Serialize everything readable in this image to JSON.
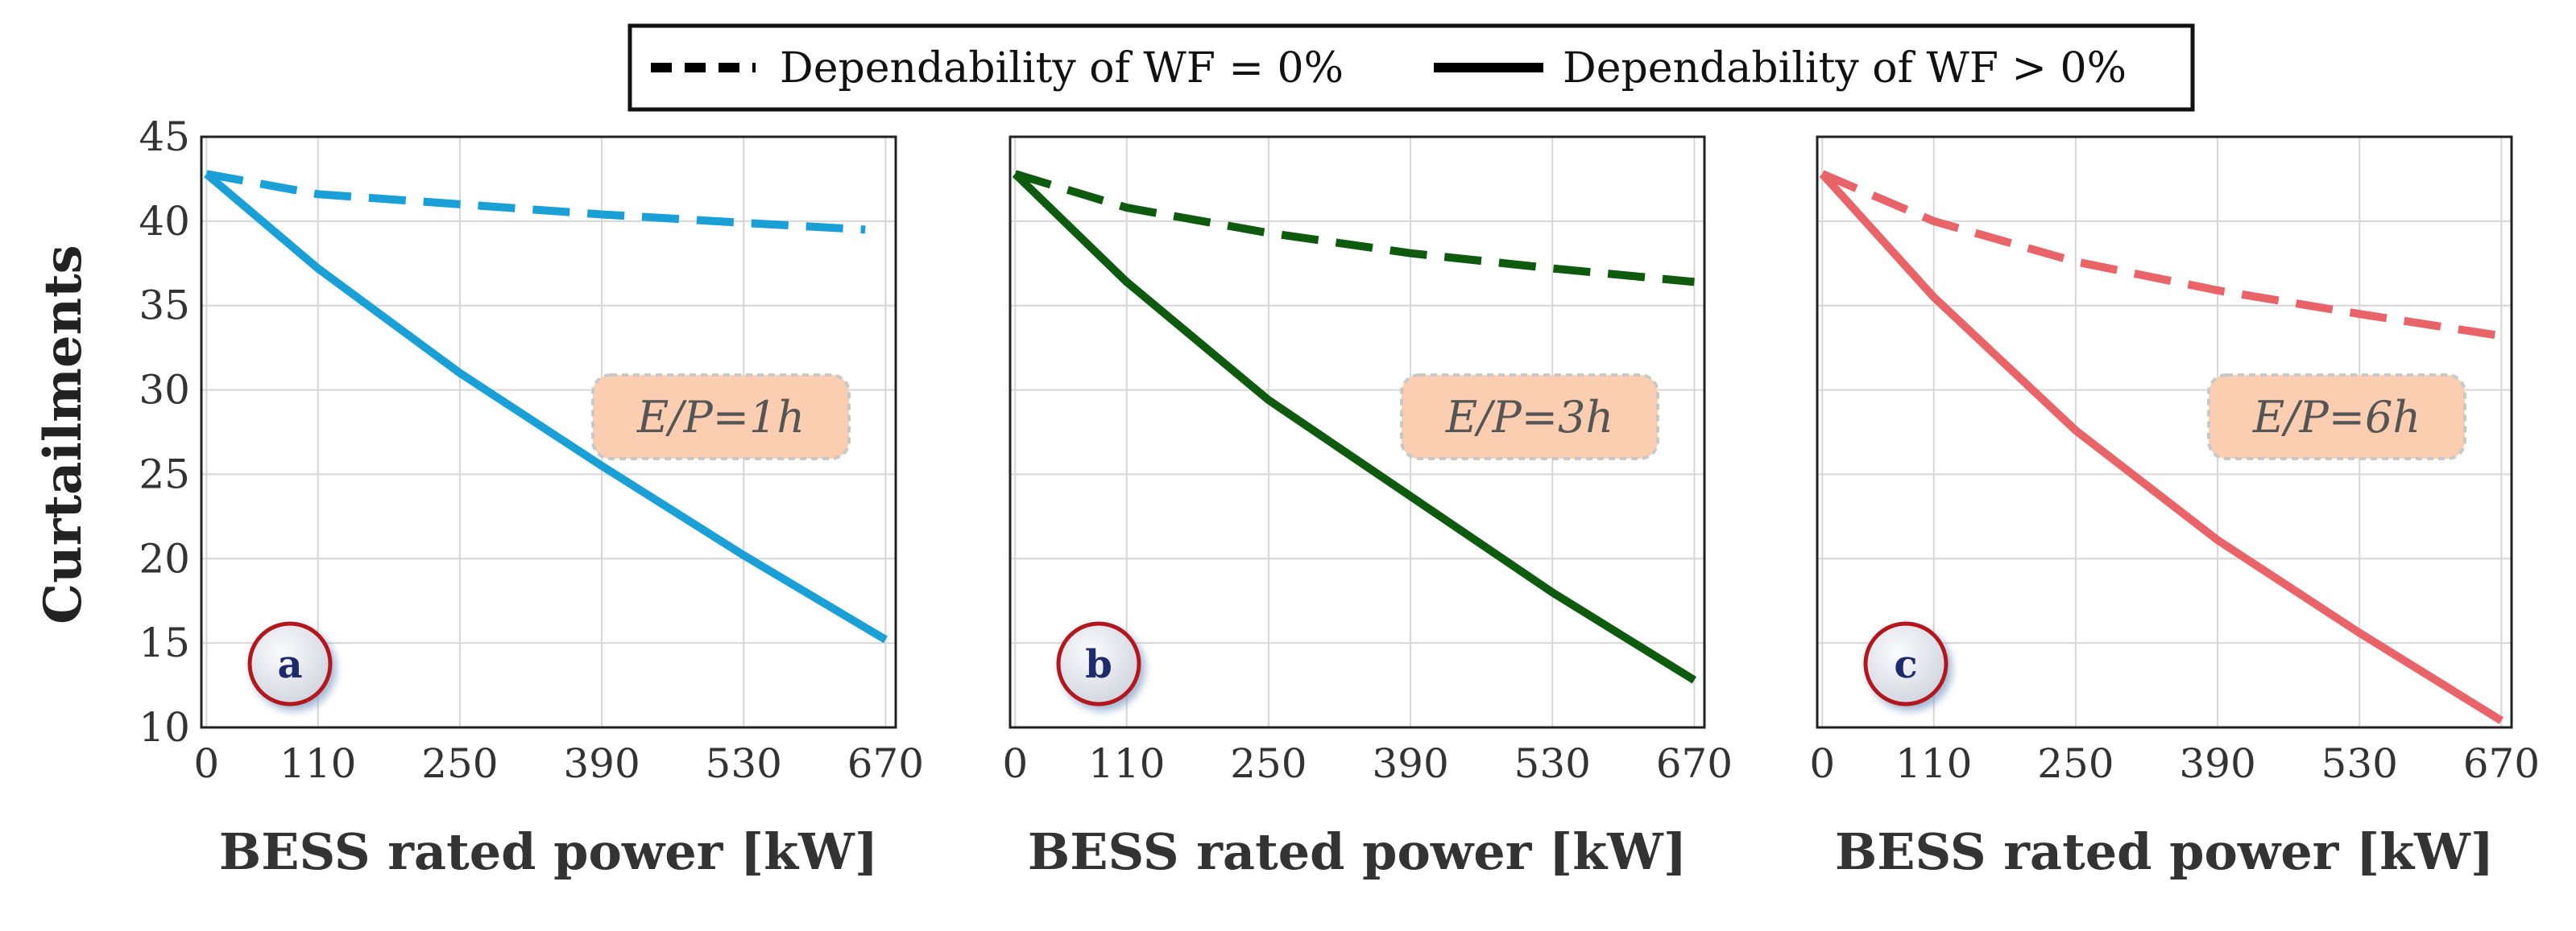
{
  "legend": [
    {
      "label": "Dependability of WF = 0%",
      "dash": true
    },
    {
      "label": "Dependability of WF > 0%",
      "dash": false
    }
  ],
  "ylabel": "Curtailments",
  "yticks": [
    10,
    15,
    20,
    25,
    30,
    35,
    40,
    45
  ],
  "xticks": [
    0,
    110,
    250,
    390,
    530,
    670
  ],
  "chart_data": [
    {
      "type": "line",
      "panel": "a",
      "color": "#1aa0d6",
      "annotation": "E/P=1h",
      "xlabel": "BESS rated power [kW]",
      "ylabel": "Curtailments",
      "xlim": [
        -5,
        680
      ],
      "ylim": [
        10,
        45
      ],
      "series": [
        {
          "dependability": "= 0%",
          "style": "dashed",
          "x": [
            0,
            110,
            250,
            390,
            530,
            650
          ],
          "y": [
            42.8,
            41.6,
            41.0,
            40.4,
            39.9,
            39.5
          ]
        },
        {
          "dependability": "> 0%",
          "style": "solid",
          "x": [
            0,
            110,
            250,
            390,
            530,
            670
          ],
          "y": [
            42.8,
            37.2,
            31.0,
            25.5,
            20.2,
            15.2
          ]
        }
      ]
    },
    {
      "type": "line",
      "panel": "b",
      "color": "#0e5a0e",
      "annotation": "E/P=3h",
      "xlabel": "BESS rated power [kW]",
      "ylabel": "Curtailments",
      "xlim": [
        -5,
        680
      ],
      "ylim": [
        10,
        45
      ],
      "series": [
        {
          "dependability": "= 0%",
          "style": "dashed",
          "x": [
            0,
            110,
            250,
            390,
            530,
            670
          ],
          "y": [
            42.8,
            40.8,
            39.3,
            38.1,
            37.2,
            36.4
          ]
        },
        {
          "dependability": "> 0%",
          "style": "solid",
          "x": [
            0,
            110,
            250,
            390,
            530,
            670
          ],
          "y": [
            42.8,
            36.4,
            29.4,
            23.7,
            18.0,
            12.8
          ]
        }
      ]
    },
    {
      "type": "line",
      "panel": "c",
      "color": "#e86468",
      "annotation": "E/P=6h",
      "xlabel": "BESS rated power [kW]",
      "ylabel": "Curtailments",
      "xlim": [
        -5,
        680
      ],
      "ylim": [
        10,
        45
      ],
      "series": [
        {
          "dependability": "= 0%",
          "style": "dashed",
          "x": [
            0,
            110,
            250,
            390,
            530,
            670
          ],
          "y": [
            42.8,
            40.0,
            37.6,
            35.9,
            34.5,
            33.2
          ]
        },
        {
          "dependability": "> 0%",
          "style": "solid",
          "x": [
            0,
            110,
            250,
            390,
            530,
            670
          ],
          "y": [
            42.8,
            35.5,
            27.6,
            21.1,
            15.6,
            10.4
          ]
        }
      ]
    }
  ]
}
